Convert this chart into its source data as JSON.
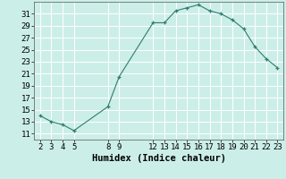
{
  "x": [
    2,
    3,
    4,
    5,
    8,
    9,
    12,
    13,
    14,
    15,
    16,
    17,
    18,
    19,
    20,
    21,
    22,
    23
  ],
  "y": [
    14,
    13,
    12.5,
    11.5,
    15.5,
    20.5,
    29.5,
    29.5,
    31.5,
    32,
    32.5,
    31.5,
    31,
    30,
    28.5,
    25.5,
    23.5,
    22
  ],
  "xticks": [
    2,
    3,
    4,
    5,
    8,
    9,
    12,
    13,
    14,
    15,
    16,
    17,
    18,
    19,
    20,
    21,
    22,
    23
  ],
  "yticks": [
    11,
    13,
    15,
    17,
    19,
    21,
    23,
    25,
    27,
    29,
    31
  ],
  "xlabel": "Humidex (Indice chaleur)",
  "line_color": "#2e7d6e",
  "marker_color": "#2e7d6e",
  "bg_color": "#cceee8",
  "grid_color": "#aaddcc",
  "ylim": [
    10.0,
    33.0
  ],
  "xlim": [
    1.5,
    23.5
  ],
  "tick_fontsize": 6.5,
  "xlabel_fontsize": 7.5
}
